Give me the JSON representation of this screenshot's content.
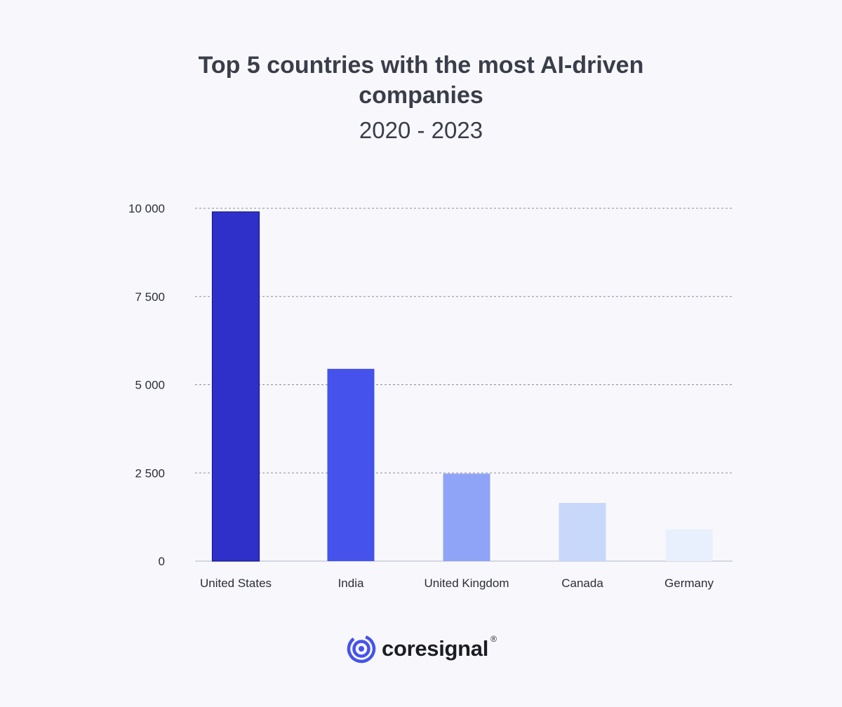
{
  "chart_data": {
    "type": "bar",
    "title": "Top 5 countries with the most AI-driven companies",
    "subtitle": "2020 - 2023",
    "categories": [
      "United States",
      "India",
      "United Kingdom",
      "Canada",
      "Germany"
    ],
    "values": [
      9900,
      5450,
      2480,
      1650,
      900
    ],
    "bar_colors": [
      "#2f2fc9",
      "#4553ec",
      "#8fa3f7",
      "#c8d8fb",
      "#e8f0fd"
    ],
    "ylim": [
      0,
      10000
    ],
    "yticks": [
      0,
      2500,
      5000,
      7500,
      10000
    ],
    "ytick_labels": [
      "0",
      "2 500",
      "5 000",
      "7 500",
      "10 000"
    ],
    "xlabel": "",
    "ylabel": "",
    "grid": true
  },
  "brand": {
    "name": "coresignal",
    "registered_mark": "®",
    "icon": "coresignal-logo-icon",
    "accent": "#4553ec"
  }
}
